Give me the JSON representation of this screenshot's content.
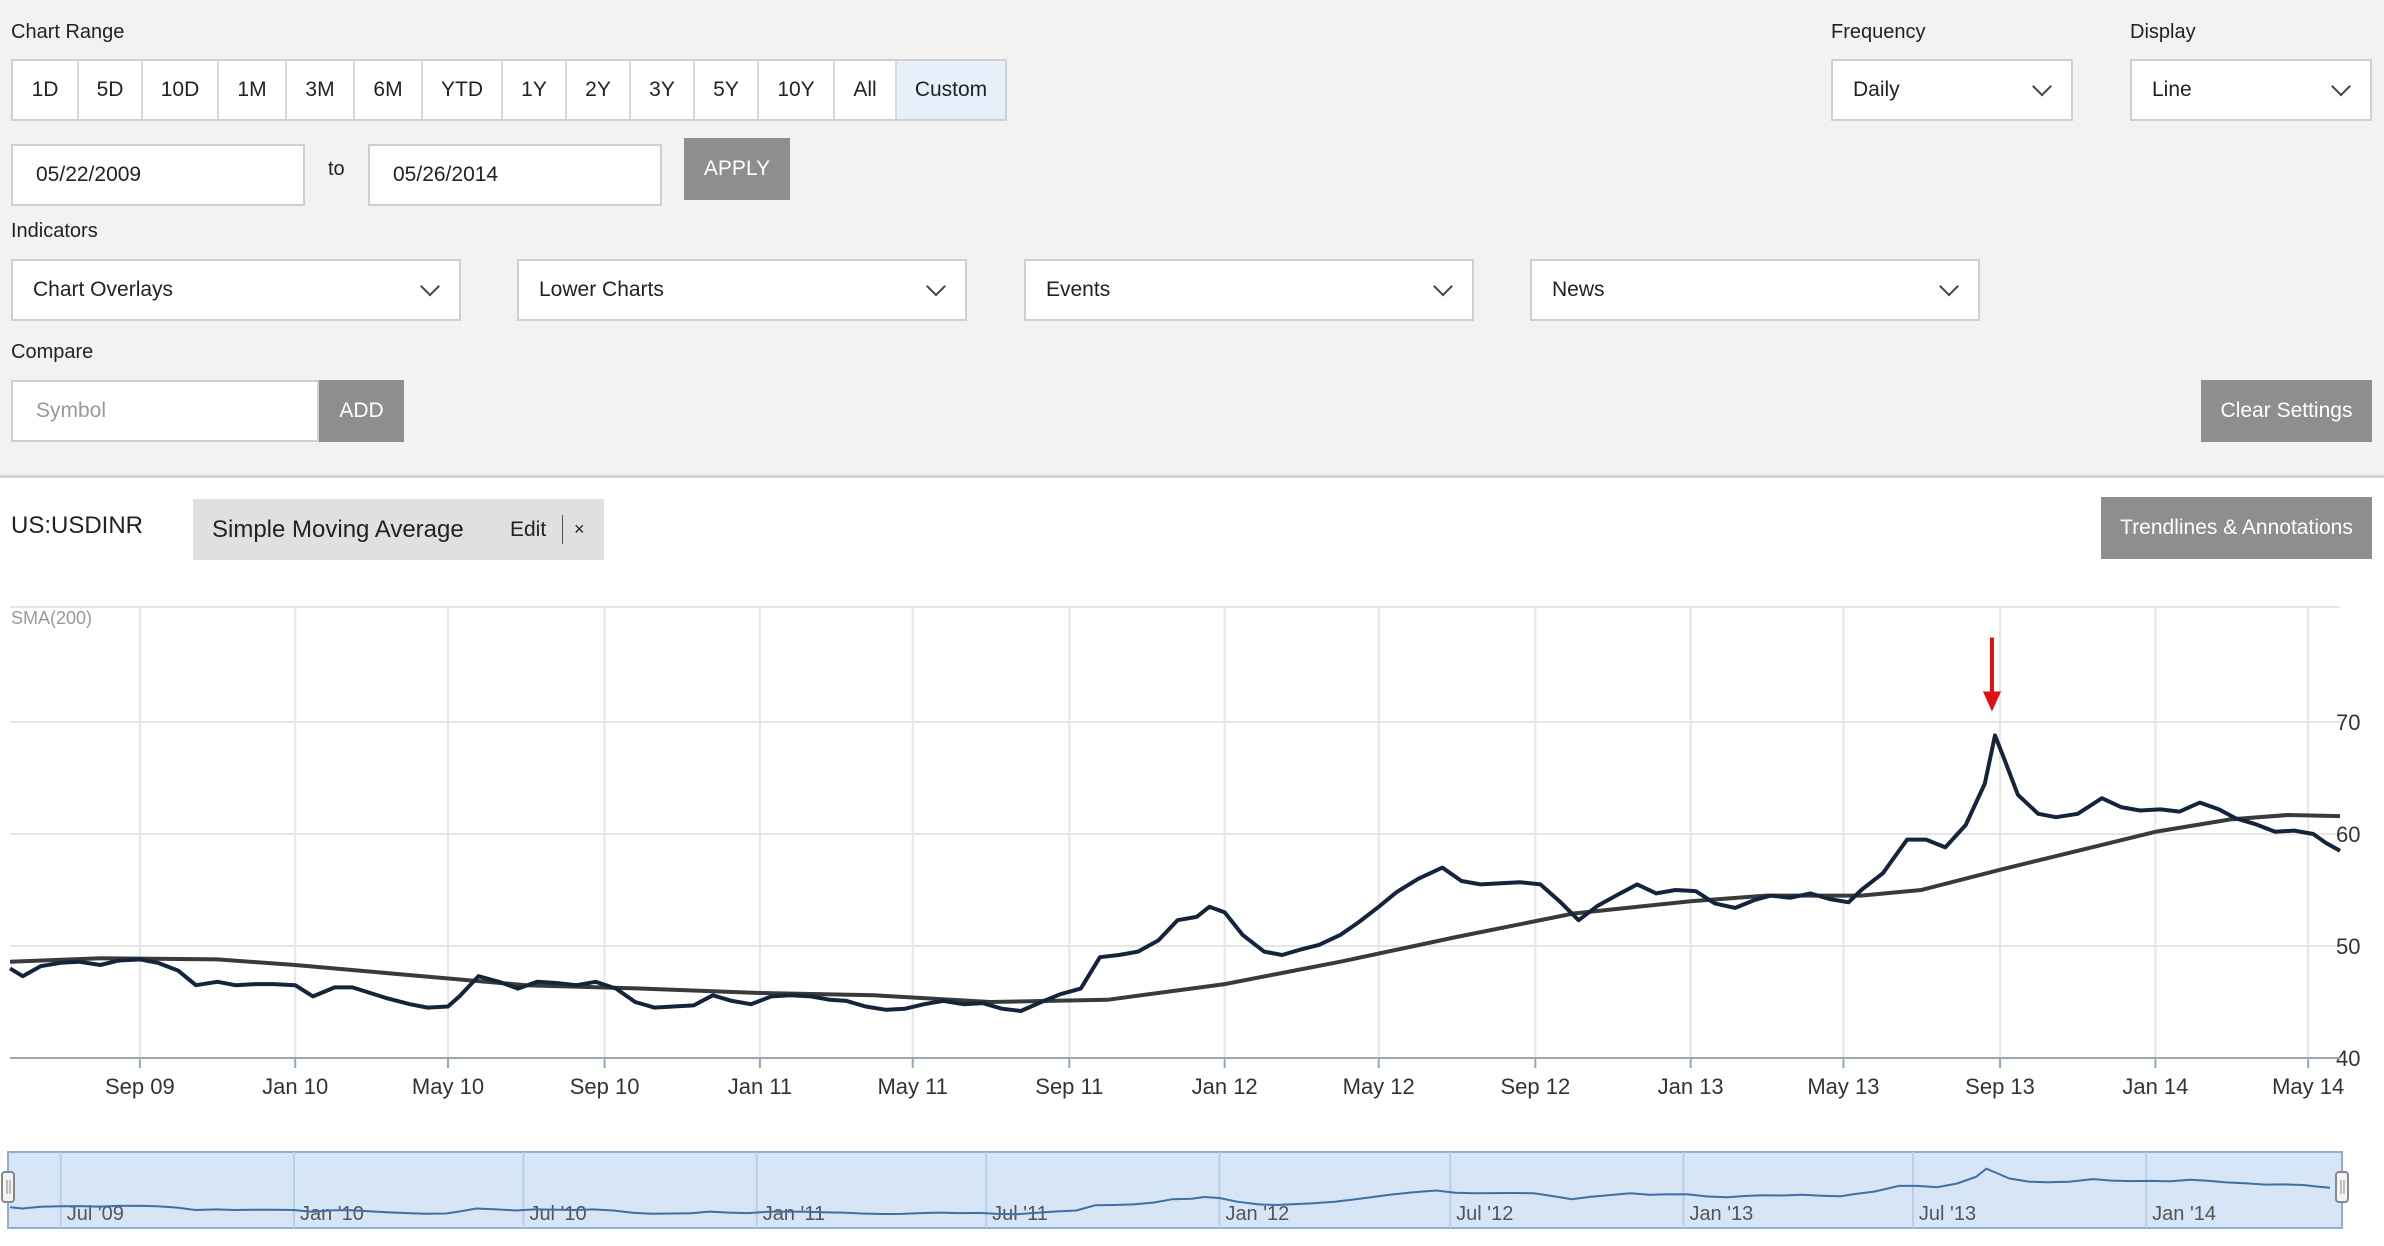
{
  "controls": {
    "chart_range_label": "Chart Range",
    "range_buttons": [
      "1D",
      "5D",
      "10D",
      "1M",
      "3M",
      "6M",
      "YTD",
      "1Y",
      "2Y",
      "3Y",
      "5Y",
      "10Y",
      "All",
      "Custom"
    ],
    "active_range": "Custom",
    "from_date": "05/22/2009",
    "to_label": "to",
    "to_date": "05/26/2014",
    "apply_label": "APPLY",
    "frequency_label": "Frequency",
    "frequency_value": "Daily",
    "display_label": "Display",
    "display_value": "Line",
    "indicators_label": "Indicators",
    "indicator_menus": [
      "Chart Overlays",
      "Lower Charts",
      "Events",
      "News"
    ],
    "compare_label": "Compare",
    "symbol_placeholder": "Symbol",
    "add_label": "ADD",
    "clear_label": "Clear Settings"
  },
  "chart_header": {
    "symbol": "US:USDINR",
    "indicator": "Simple Moving Average",
    "edit_label": "Edit",
    "remove_label": "×",
    "trendlines_label": "Trendlines & Annotations"
  },
  "colors": {
    "price": "#14243c",
    "sma": "#3a3a3a",
    "arrow": "#e01010",
    "navigator_fill": "#d6e6f7"
  },
  "chart_data": {
    "type": "line",
    "indicator_label": "SMA(200)",
    "x_start": "2009-05-22",
    "x_end": "2014-05-26",
    "yticks": [
      40,
      50,
      60,
      70
    ],
    "ylim": [
      40,
      80
    ],
    "xtick_labels": [
      "Sep 09",
      "Jan 10",
      "May 10",
      "Sep 10",
      "Jan 11",
      "May 11",
      "Sep 11",
      "Jan 12",
      "May 12",
      "Sep 12",
      "Jan 13",
      "May 13",
      "Sep 13",
      "Jan 14",
      "May 14"
    ],
    "xtick_dates": [
      "2009-09-01",
      "2010-01-01",
      "2010-05-01",
      "2010-09-01",
      "2011-01-01",
      "2011-05-01",
      "2011-09-01",
      "2012-01-01",
      "2012-05-01",
      "2012-09-01",
      "2013-01-01",
      "2013-05-01",
      "2013-09-01",
      "2014-01-01",
      "2014-05-01"
    ],
    "grid": true,
    "series": [
      {
        "name": "US:USDINR",
        "points": [
          [
            "2009-05-22",
            48.0
          ],
          [
            "2009-06-01",
            47.3
          ],
          [
            "2009-06-15",
            48.2
          ],
          [
            "2009-07-01",
            48.5
          ],
          [
            "2009-07-15",
            48.6
          ],
          [
            "2009-08-01",
            48.3
          ],
          [
            "2009-08-15",
            48.7
          ],
          [
            "2009-09-01",
            48.8
          ],
          [
            "2009-09-15",
            48.5
          ],
          [
            "2009-10-01",
            47.8
          ],
          [
            "2009-10-15",
            46.5
          ],
          [
            "2009-11-01",
            46.8
          ],
          [
            "2009-11-15",
            46.5
          ],
          [
            "2009-12-01",
            46.6
          ],
          [
            "2009-12-15",
            46.6
          ],
          [
            "2010-01-01",
            46.5
          ],
          [
            "2010-01-15",
            45.5
          ],
          [
            "2010-02-01",
            46.3
          ],
          [
            "2010-02-15",
            46.3
          ],
          [
            "2010-03-01",
            45.8
          ],
          [
            "2010-03-15",
            45.3
          ],
          [
            "2010-04-01",
            44.8
          ],
          [
            "2010-04-15",
            44.5
          ],
          [
            "2010-05-01",
            44.6
          ],
          [
            "2010-05-10",
            45.5
          ],
          [
            "2010-05-25",
            47.3
          ],
          [
            "2010-06-10",
            46.8
          ],
          [
            "2010-06-25",
            46.2
          ],
          [
            "2010-07-10",
            46.8
          ],
          [
            "2010-07-25",
            46.7
          ],
          [
            "2010-08-10",
            46.5
          ],
          [
            "2010-08-25",
            46.8
          ],
          [
            "2010-09-10",
            46.2
          ],
          [
            "2010-09-25",
            45.0
          ],
          [
            "2010-10-10",
            44.5
          ],
          [
            "2010-10-25",
            44.6
          ],
          [
            "2010-11-10",
            44.7
          ],
          [
            "2010-11-25",
            45.6
          ],
          [
            "2010-12-10",
            45.1
          ],
          [
            "2010-12-25",
            44.8
          ],
          [
            "2011-01-10",
            45.5
          ],
          [
            "2011-01-25",
            45.6
          ],
          [
            "2011-02-10",
            45.5
          ],
          [
            "2011-02-25",
            45.2
          ],
          [
            "2011-03-10",
            45.1
          ],
          [
            "2011-03-25",
            44.6
          ],
          [
            "2011-04-10",
            44.3
          ],
          [
            "2011-04-25",
            44.4
          ],
          [
            "2011-05-10",
            44.8
          ],
          [
            "2011-05-25",
            45.1
          ],
          [
            "2011-06-10",
            44.8
          ],
          [
            "2011-06-25",
            44.9
          ],
          [
            "2011-07-10",
            44.4
          ],
          [
            "2011-07-25",
            44.2
          ],
          [
            "2011-08-10",
            45.0
          ],
          [
            "2011-08-25",
            45.7
          ],
          [
            "2011-09-10",
            46.2
          ],
          [
            "2011-09-25",
            49.0
          ],
          [
            "2011-10-10",
            49.2
          ],
          [
            "2011-10-25",
            49.5
          ],
          [
            "2011-11-10",
            50.5
          ],
          [
            "2011-11-25",
            52.3
          ],
          [
            "2011-12-10",
            52.6
          ],
          [
            "2011-12-20",
            53.5
          ],
          [
            "2012-01-01",
            53.0
          ],
          [
            "2012-01-15",
            51.0
          ],
          [
            "2012-02-01",
            49.5
          ],
          [
            "2012-02-15",
            49.2
          ],
          [
            "2012-03-01",
            49.7
          ],
          [
            "2012-03-15",
            50.1
          ],
          [
            "2012-04-01",
            51.0
          ],
          [
            "2012-04-15",
            52.1
          ],
          [
            "2012-05-01",
            53.5
          ],
          [
            "2012-05-15",
            54.8
          ],
          [
            "2012-06-01",
            56.0
          ],
          [
            "2012-06-20",
            57.0
          ],
          [
            "2012-07-05",
            55.8
          ],
          [
            "2012-07-20",
            55.5
          ],
          [
            "2012-08-05",
            55.6
          ],
          [
            "2012-08-20",
            55.7
          ],
          [
            "2012-09-05",
            55.5
          ],
          [
            "2012-09-20",
            54.0
          ],
          [
            "2012-10-05",
            52.3
          ],
          [
            "2012-10-20",
            53.6
          ],
          [
            "2012-11-05",
            54.6
          ],
          [
            "2012-11-20",
            55.5
          ],
          [
            "2012-12-05",
            54.7
          ],
          [
            "2012-12-20",
            55.0
          ],
          [
            "2013-01-05",
            54.9
          ],
          [
            "2013-01-20",
            53.8
          ],
          [
            "2013-02-05",
            53.4
          ],
          [
            "2013-02-20",
            54.1
          ],
          [
            "2013-03-05",
            54.5
          ],
          [
            "2013-03-20",
            54.3
          ],
          [
            "2013-04-05",
            54.7
          ],
          [
            "2013-04-20",
            54.2
          ],
          [
            "2013-05-05",
            53.9
          ],
          [
            "2013-05-15",
            55.0
          ],
          [
            "2013-06-01",
            56.5
          ],
          [
            "2013-06-20",
            59.5
          ],
          [
            "2013-07-05",
            59.5
          ],
          [
            "2013-07-20",
            58.8
          ],
          [
            "2013-08-05",
            60.8
          ],
          [
            "2013-08-20",
            64.5
          ],
          [
            "2013-08-28",
            68.8
          ],
          [
            "2013-09-05",
            66.5
          ],
          [
            "2013-09-15",
            63.5
          ],
          [
            "2013-10-01",
            61.8
          ],
          [
            "2013-10-15",
            61.5
          ],
          [
            "2013-11-01",
            61.8
          ],
          [
            "2013-11-20",
            63.2
          ],
          [
            "2013-12-05",
            62.4
          ],
          [
            "2013-12-20",
            62.1
          ],
          [
            "2014-01-05",
            62.2
          ],
          [
            "2014-01-20",
            62.0
          ],
          [
            "2014-02-05",
            62.8
          ],
          [
            "2014-02-20",
            62.2
          ],
          [
            "2014-03-05",
            61.4
          ],
          [
            "2014-03-20",
            60.9
          ],
          [
            "2014-04-05",
            60.2
          ],
          [
            "2014-04-20",
            60.3
          ],
          [
            "2014-05-05",
            60.0
          ],
          [
            "2014-05-15",
            59.2
          ],
          [
            "2014-05-26",
            58.5
          ]
        ]
      },
      {
        "name": "SMA(200)",
        "points": [
          [
            "2009-05-22",
            48.6
          ],
          [
            "2009-08-01",
            48.9
          ],
          [
            "2009-11-01",
            48.8
          ],
          [
            "2010-01-01",
            48.3
          ],
          [
            "2010-04-01",
            47.4
          ],
          [
            "2010-07-01",
            46.5
          ],
          [
            "2010-10-01",
            46.2
          ],
          [
            "2011-01-01",
            45.8
          ],
          [
            "2011-04-01",
            45.6
          ],
          [
            "2011-07-01",
            45.0
          ],
          [
            "2011-10-01",
            45.2
          ],
          [
            "2012-01-01",
            46.6
          ],
          [
            "2012-04-01",
            48.6
          ],
          [
            "2012-07-01",
            50.8
          ],
          [
            "2012-10-01",
            52.9
          ],
          [
            "2013-01-01",
            54.0
          ],
          [
            "2013-03-01",
            54.5
          ],
          [
            "2013-05-15",
            54.5
          ],
          [
            "2013-07-01",
            55.0
          ],
          [
            "2013-09-01",
            56.8
          ],
          [
            "2013-11-01",
            58.5
          ],
          [
            "2014-01-01",
            60.2
          ],
          [
            "2014-03-01",
            61.3
          ],
          [
            "2014-04-15",
            61.7
          ],
          [
            "2014-05-26",
            61.6
          ]
        ]
      }
    ],
    "annotation": {
      "type": "arrow",
      "date": "2013-08-28",
      "value": 68.8
    },
    "navigator": {
      "x_start": "2009-05-22",
      "x_end": "2014-05-26",
      "labels": [
        "Jul '09",
        "Jan '10",
        "Jul '10",
        "Jan '11",
        "Jul '11",
        "Jan '12",
        "Jul '12",
        "Jan '13",
        "Jul '13",
        "Jan '14"
      ],
      "label_dates": [
        "2009-07-01",
        "2010-01-01",
        "2010-07-01",
        "2011-01-01",
        "2011-07-01",
        "2012-01-01",
        "2012-07-01",
        "2013-01-01",
        "2013-07-01",
        "2014-01-01"
      ]
    }
  }
}
